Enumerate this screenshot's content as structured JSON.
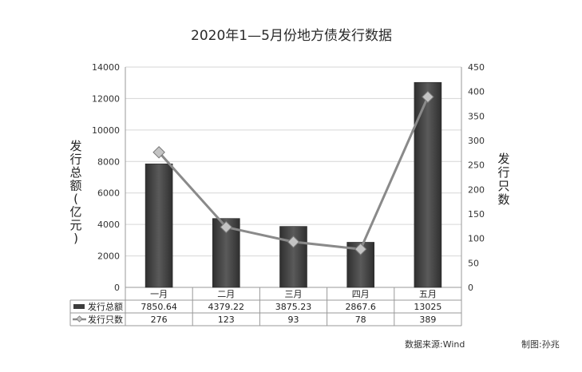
{
  "chart_data": {
    "type": "bar+line",
    "title": "2020年1—5月份地方债发行数据",
    "categories": [
      "一月",
      "二月",
      "三月",
      "四月",
      "五月"
    ],
    "series": [
      {
        "name": "发行总额",
        "type": "bar",
        "axis": "left",
        "values": [
          7850.64,
          4379.22,
          3875.23,
          2867.6,
          13025
        ],
        "value_labels": [
          "7850.64",
          "4379.22",
          "3875.23",
          "2867.6",
          "13025"
        ],
        "color": "#4a4a4a"
      },
      {
        "name": "发行只数",
        "type": "line",
        "axis": "right",
        "values": [
          276,
          123,
          93,
          78,
          389
        ],
        "value_labels": [
          "276",
          "123",
          "93",
          "78",
          "389"
        ],
        "color": "#7a7a7a"
      }
    ],
    "y_left": {
      "label": "发行总额(亿元)",
      "min": 0,
      "max": 14000,
      "ticks": [
        "0",
        "2000",
        "4000",
        "6000",
        "8000",
        "10000",
        "12000",
        "14000"
      ]
    },
    "y_right": {
      "label": "发行只数",
      "min": 0,
      "max": 450,
      "ticks": [
        "0",
        "50",
        "100",
        "150",
        "200",
        "250",
        "300",
        "350",
        "400",
        "450"
      ]
    },
    "grid": true,
    "legend": "data-table-below"
  },
  "footer": {
    "source": "数据来源:Wind",
    "author": "制图:孙兆"
  }
}
